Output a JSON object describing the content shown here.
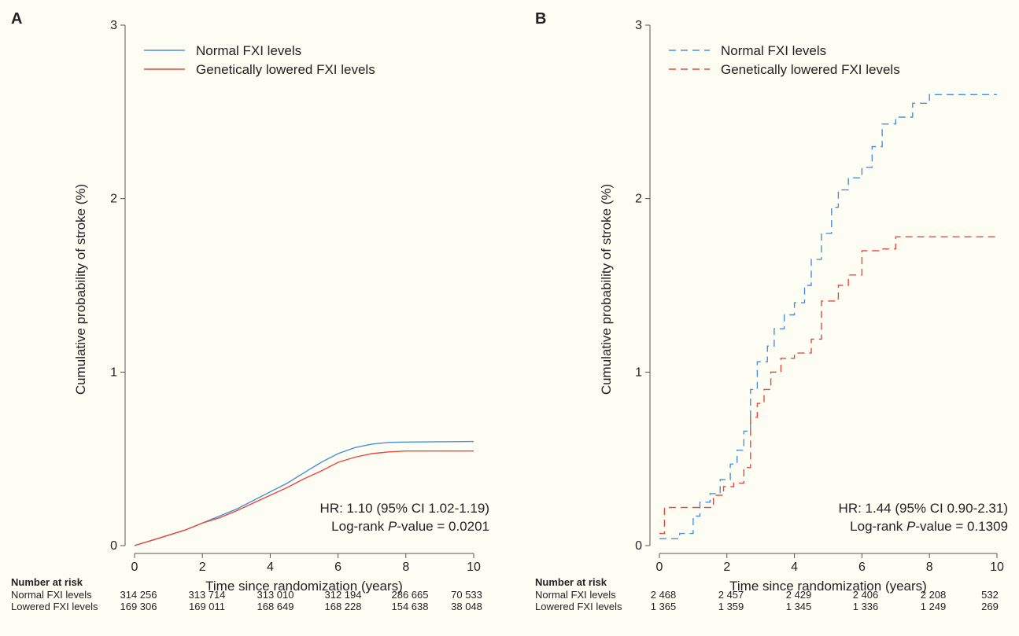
{
  "chart_data": [
    {
      "panel_label": "A",
      "type": "line",
      "line_style": "solid",
      "xlabel": "Time since randomization (years)",
      "ylabel": "Cumulative probability of stroke (%)",
      "xlim": [
        0,
        10
      ],
      "ylim": [
        0,
        3
      ],
      "x_ticks": [
        0,
        2,
        4,
        6,
        8,
        10
      ],
      "y_ticks": [
        0,
        1,
        2,
        3
      ],
      "legend_position": "top-left",
      "annotation_line1": "HR: 1.10 (95% CI 1.02-1.19)",
      "annotation_line2_prefix": "Log-rank ",
      "annotation_line2_p": "P",
      "annotation_line2_suffix": "-value = 0.0201",
      "series": [
        {
          "name": "Normal FXI levels",
          "color": "#4a90d9",
          "points": [
            [
              0,
              0
            ],
            [
              0.5,
              0.03
            ],
            [
              1,
              0.06
            ],
            [
              1.5,
              0.09
            ],
            [
              2,
              0.13
            ],
            [
              2.5,
              0.17
            ],
            [
              3,
              0.21
            ],
            [
              3.5,
              0.26
            ],
            [
              4,
              0.31
            ],
            [
              4.5,
              0.36
            ],
            [
              5,
              0.42
            ],
            [
              5.5,
              0.48
            ],
            [
              6,
              0.53
            ],
            [
              6.5,
              0.565
            ],
            [
              7,
              0.585
            ],
            [
              7.5,
              0.595
            ],
            [
              8,
              0.597
            ],
            [
              10,
              0.6
            ]
          ]
        },
        {
          "name": "Genetically lowered FXI levels",
          "color": "#e8483f",
          "points": [
            [
              0,
              0
            ],
            [
              0.5,
              0.03
            ],
            [
              1,
              0.06
            ],
            [
              1.5,
              0.09
            ],
            [
              2,
              0.13
            ],
            [
              2.5,
              0.16
            ],
            [
              3,
              0.2
            ],
            [
              3.5,
              0.245
            ],
            [
              4,
              0.29
            ],
            [
              4.5,
              0.335
            ],
            [
              5,
              0.385
            ],
            [
              5.5,
              0.43
            ],
            [
              6,
              0.48
            ],
            [
              6.5,
              0.51
            ],
            [
              7,
              0.53
            ],
            [
              7.5,
              0.54
            ],
            [
              8,
              0.545
            ],
            [
              10,
              0.545
            ]
          ]
        }
      ],
      "risk_table": {
        "title": "Number at risk",
        "rows": [
          {
            "label": "Normal FXI levels",
            "values": [
              "314 256",
              "313 714",
              "313 010",
              "312 194",
              "286 665",
              "70 533"
            ]
          },
          {
            "label": "Lowered FXI levels",
            "values": [
              "169 306",
              "169 011",
              "168 649",
              "168 228",
              "154 638",
              "38 048"
            ]
          }
        ]
      }
    },
    {
      "panel_label": "B",
      "type": "line",
      "line_style": "dashed",
      "xlabel": "Time since randomization (years)",
      "ylabel": "Cumulative probability of stroke (%)",
      "xlim": [
        0,
        10
      ],
      "ylim": [
        0,
        3
      ],
      "x_ticks": [
        0,
        2,
        4,
        6,
        8,
        10
      ],
      "y_ticks": [
        0,
        1,
        2,
        3
      ],
      "legend_position": "top-left",
      "annotation_line1": "HR: 1.44 (95% CI 0.90-2.31)",
      "annotation_line2_prefix": "Log-rank ",
      "annotation_line2_p": "P",
      "annotation_line2_suffix": "-value = 0.1309",
      "series": [
        {
          "name": "Normal FXI levels",
          "color": "#4a90d9",
          "points": [
            [
              0,
              0.04
            ],
            [
              0.6,
              0.04
            ],
            [
              0.6,
              0.07
            ],
            [
              1,
              0.07
            ],
            [
              1,
              0.17
            ],
            [
              1.2,
              0.17
            ],
            [
              1.2,
              0.25
            ],
            [
              1.5,
              0.25
            ],
            [
              1.5,
              0.3
            ],
            [
              1.8,
              0.3
            ],
            [
              1.8,
              0.38
            ],
            [
              2.1,
              0.38
            ],
            [
              2.1,
              0.47
            ],
            [
              2.3,
              0.47
            ],
            [
              2.3,
              0.55
            ],
            [
              2.5,
              0.55
            ],
            [
              2.5,
              0.66
            ],
            [
              2.7,
              0.66
            ],
            [
              2.7,
              0.9
            ],
            [
              2.9,
              0.9
            ],
            [
              2.9,
              1.06
            ],
            [
              3.2,
              1.06
            ],
            [
              3.2,
              1.15
            ],
            [
              3.4,
              1.15
            ],
            [
              3.4,
              1.25
            ],
            [
              3.7,
              1.25
            ],
            [
              3.7,
              1.33
            ],
            [
              4,
              1.33
            ],
            [
              4,
              1.4
            ],
            [
              4.3,
              1.4
            ],
            [
              4.3,
              1.5
            ],
            [
              4.5,
              1.5
            ],
            [
              4.5,
              1.65
            ],
            [
              4.8,
              1.65
            ],
            [
              4.8,
              1.8
            ],
            [
              5.1,
              1.8
            ],
            [
              5.1,
              1.95
            ],
            [
              5.3,
              1.95
            ],
            [
              5.3,
              2.05
            ],
            [
              5.6,
              2.05
            ],
            [
              5.6,
              2.12
            ],
            [
              6,
              2.12
            ],
            [
              6,
              2.18
            ],
            [
              6.3,
              2.18
            ],
            [
              6.3,
              2.3
            ],
            [
              6.6,
              2.3
            ],
            [
              6.6,
              2.43
            ],
            [
              7,
              2.43
            ],
            [
              7,
              2.47
            ],
            [
              7.5,
              2.47
            ],
            [
              7.5,
              2.55
            ],
            [
              8,
              2.55
            ],
            [
              8,
              2.6
            ],
            [
              10,
              2.6
            ]
          ]
        },
        {
          "name": "Genetically lowered FXI levels",
          "color": "#e8483f",
          "points": [
            [
              0,
              0.07
            ],
            [
              0.15,
              0.07
            ],
            [
              0.15,
              0.22
            ],
            [
              1.6,
              0.22
            ],
            [
              1.6,
              0.29
            ],
            [
              1.9,
              0.29
            ],
            [
              1.9,
              0.34
            ],
            [
              2.2,
              0.34
            ],
            [
              2.2,
              0.36
            ],
            [
              2.5,
              0.36
            ],
            [
              2.5,
              0.45
            ],
            [
              2.7,
              0.45
            ],
            [
              2.7,
              0.74
            ],
            [
              2.9,
              0.74
            ],
            [
              2.9,
              0.82
            ],
            [
              3.1,
              0.82
            ],
            [
              3.1,
              0.9
            ],
            [
              3.3,
              0.9
            ],
            [
              3.3,
              1.0
            ],
            [
              3.6,
              1.0
            ],
            [
              3.6,
              1.08
            ],
            [
              4,
              1.08
            ],
            [
              4,
              1.11
            ],
            [
              4.5,
              1.11
            ],
            [
              4.5,
              1.19
            ],
            [
              4.8,
              1.19
            ],
            [
              4.8,
              1.41
            ],
            [
              5.3,
              1.41
            ],
            [
              5.3,
              1.5
            ],
            [
              5.6,
              1.5
            ],
            [
              5.6,
              1.56
            ],
            [
              6,
              1.56
            ],
            [
              6,
              1.7
            ],
            [
              6.5,
              1.7
            ],
            [
              6.5,
              1.71
            ],
            [
              7,
              1.71
            ],
            [
              7,
              1.78
            ],
            [
              10,
              1.78
            ]
          ]
        }
      ],
      "risk_table": {
        "title": "Number at risk",
        "rows": [
          {
            "label": "Normal FXI levels",
            "values": [
              "2 468",
              "2 457",
              "2 429",
              "2 406",
              "2 208",
              "532"
            ]
          },
          {
            "label": "Lowered FXI levels",
            "values": [
              "1 365",
              "1 359",
              "1 345",
              "1 336",
              "1 249",
              "269"
            ]
          }
        ]
      }
    }
  ]
}
